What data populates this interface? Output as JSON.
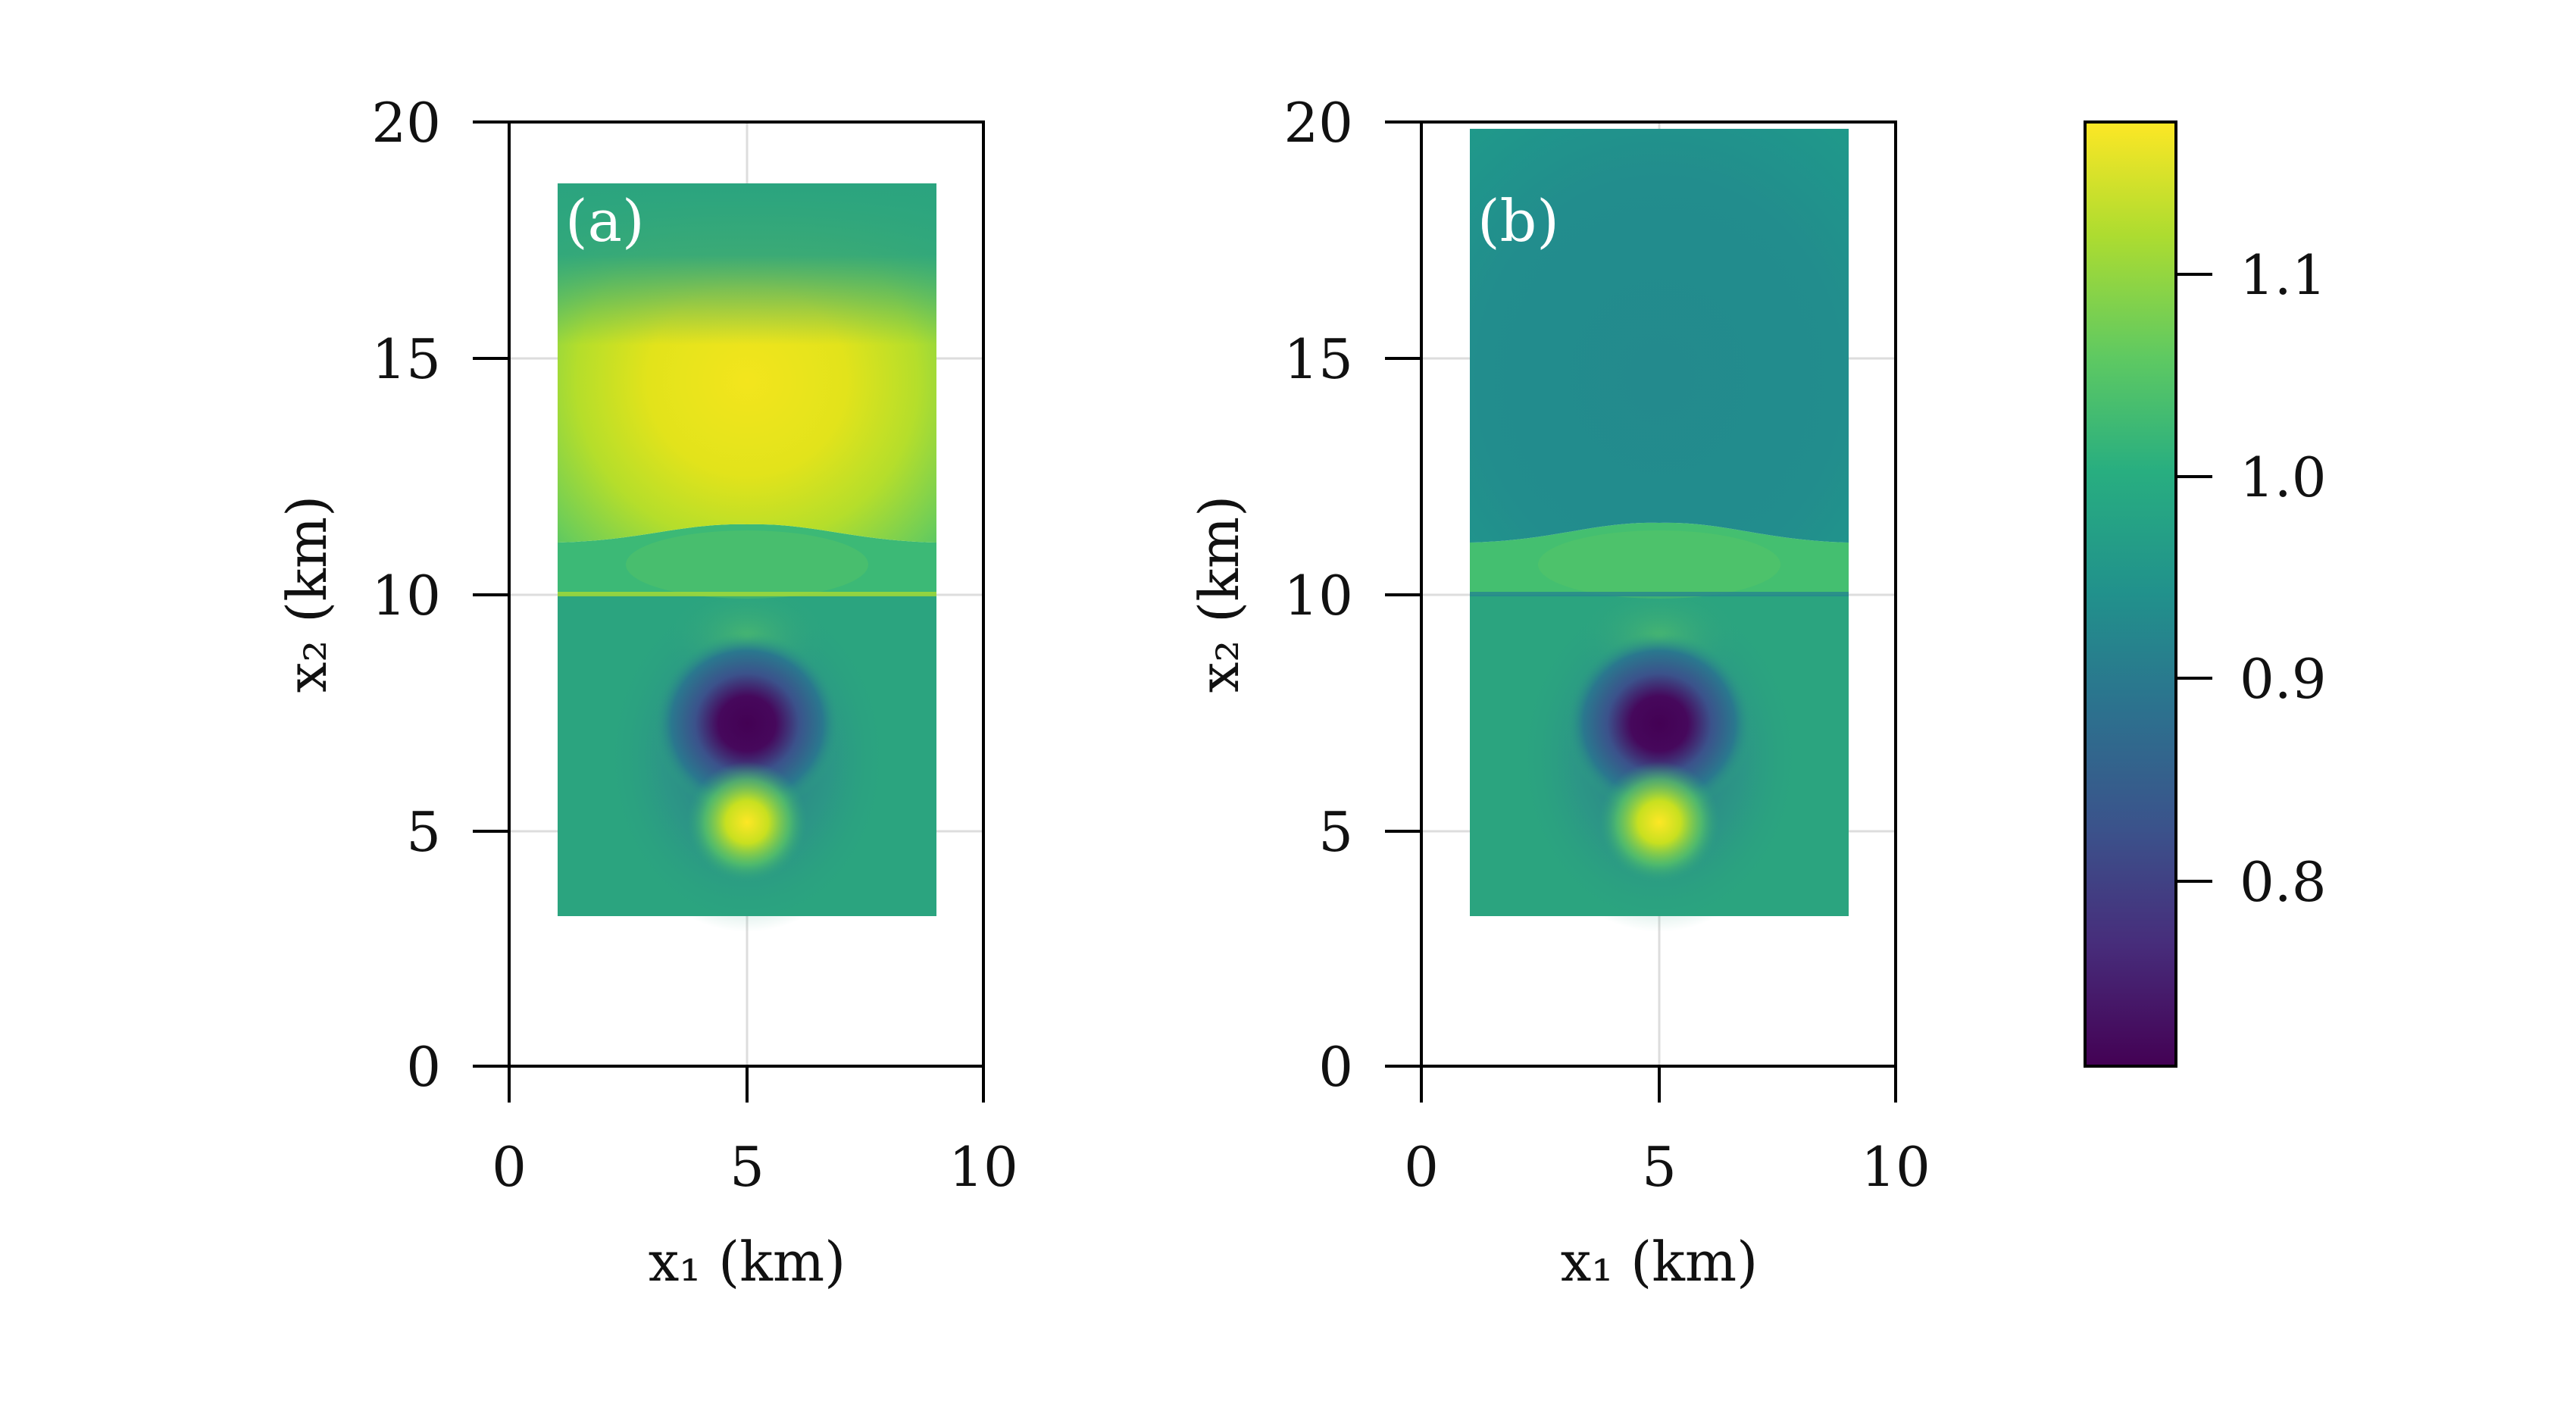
{
  "chart_data": [
    {
      "type": "heatmap",
      "panel_label": "(a)",
      "xlabel": "x₁ (km)",
      "ylabel": "x₂ (km)",
      "xlim": [
        0,
        10
      ],
      "ylim": [
        0,
        20
      ],
      "x_ticks": [
        "0",
        "5",
        "10"
      ],
      "y_ticks": [
        "0",
        "5",
        "10",
        "15",
        "20"
      ],
      "grid": true,
      "domain": {
        "x": [
          1,
          9
        ],
        "y": [
          3.2,
          18.7
        ]
      },
      "regions": [
        {
          "name": "upper",
          "y": [
            11.1,
            18.7
          ],
          "base_value": 1.0,
          "anomaly_value": 1.17,
          "anomaly_center": [
            5,
            13.5
          ]
        },
        {
          "name": "middle",
          "y": [
            10,
            11.1
          ],
          "value": 1.02
        },
        {
          "name": "lower",
          "y": [
            3.2,
            10
          ],
          "background_value": 1.0,
          "low_value": 0.72,
          "low_center": [
            5,
            7.1
          ],
          "high_value": 1.17,
          "high_center": [
            5,
            5.2
          ]
        }
      ]
    },
    {
      "type": "heatmap",
      "panel_label": "(b)",
      "xlabel": "x₁ (km)",
      "ylabel": "x₂ (km)",
      "xlim": [
        0,
        10
      ],
      "ylim": [
        0,
        20
      ],
      "x_ticks": [
        "0",
        "5",
        "10"
      ],
      "y_ticks": [
        "0",
        "5",
        "10",
        "15",
        "20"
      ],
      "grid": true,
      "domain": {
        "x": [
          1,
          9
        ],
        "y": [
          3.2,
          19.8
        ]
      },
      "regions": [
        {
          "name": "upper",
          "y": [
            11.1,
            19.8
          ],
          "base_value": 0.95,
          "anomaly_value": 0.93
        },
        {
          "name": "middle",
          "y": [
            10,
            11.1
          ],
          "value": 1.04
        },
        {
          "name": "lower",
          "y": [
            3.2,
            10
          ],
          "background_value": 1.0,
          "low_value": 0.72,
          "low_center": [
            5,
            7.1
          ],
          "high_value": 1.17,
          "high_center": [
            5,
            5.2
          ]
        }
      ]
    }
  ],
  "colorbar": {
    "colormap": "viridis",
    "range": [
      0.71,
      1.18
    ],
    "ticks": [
      "0.8",
      "0.9",
      "1.0",
      "1.1"
    ],
    "colors": [
      "#440154",
      "#3b528b",
      "#21918c",
      "#5ec962",
      "#fde725"
    ]
  }
}
